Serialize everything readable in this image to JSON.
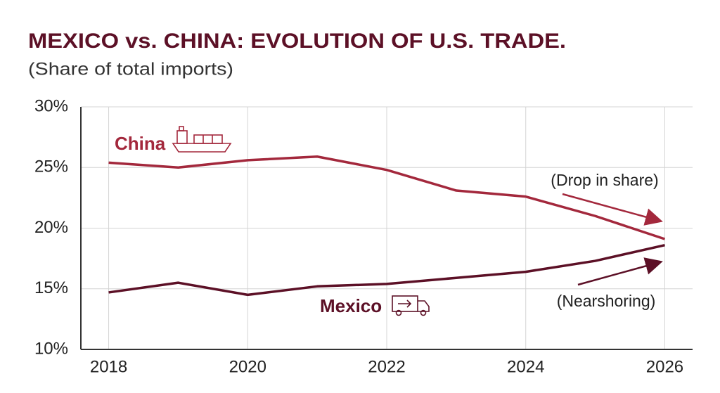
{
  "chart_data": {
    "type": "line",
    "title": "MEXICO vs. CHINA: EVOLUTION OF U.S. TRADE.",
    "subtitle": "(Share of total imports)",
    "x": [
      2018,
      2019,
      2020,
      2021,
      2022,
      2023,
      2024,
      2025,
      2026
    ],
    "series": [
      {
        "name": "China",
        "color": "#a3283c",
        "values": [
          25.4,
          25.0,
          25.6,
          25.9,
          24.8,
          23.1,
          22.6,
          21.0,
          19.1
        ]
      },
      {
        "name": "Mexico",
        "color": "#5c1026",
        "values": [
          14.7,
          15.5,
          14.5,
          15.2,
          15.4,
          15.9,
          16.4,
          17.3,
          18.6
        ]
      }
    ],
    "xlim": [
      2017.6,
      2026.4
    ],
    "xticks": [
      2018,
      2020,
      2022,
      2024,
      2026
    ],
    "ylim": [
      10,
      30
    ],
    "yticks": [
      {
        "value": 10,
        "label": "10%"
      },
      {
        "value": 15,
        "label": "15%"
      },
      {
        "value": 20,
        "label": "20%"
      },
      {
        "value": 25,
        "label": "25%"
      },
      {
        "value": 30,
        "label": "30%"
      }
    ],
    "grid": true,
    "annotations": [
      "(Drop in share)",
      "(Nearshoring)"
    ]
  }
}
